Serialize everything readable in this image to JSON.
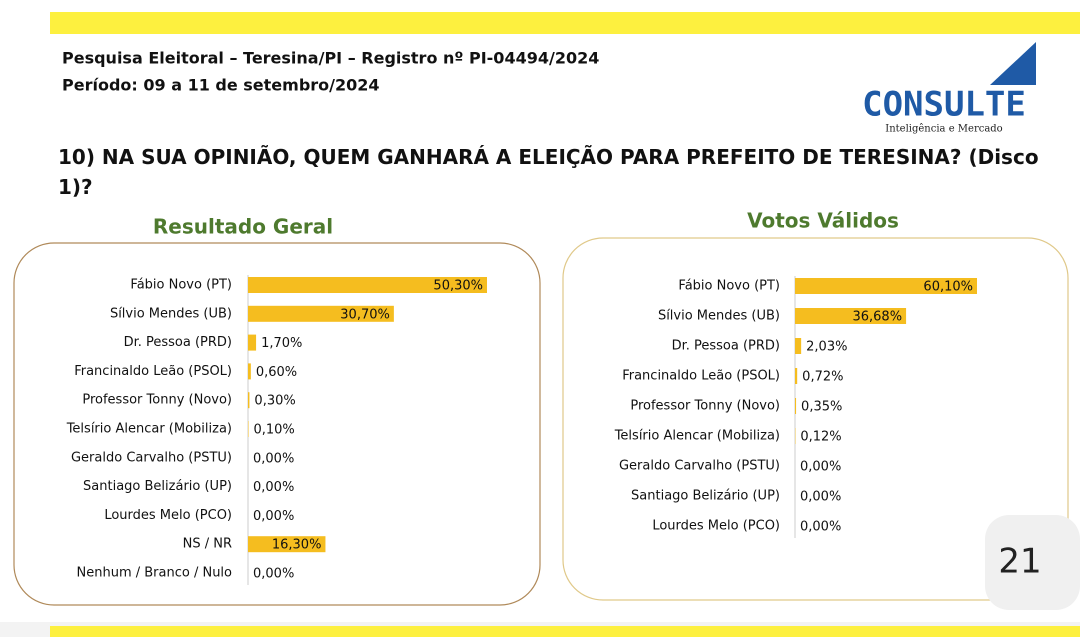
{
  "header": {
    "line1": "Pesquisa Eleitoral – Teresina/PI  – Registro nº PI-04494/2024",
    "line2": "Período: 09 a 11 de setembro/2024",
    "question": "10) NA SUA OPINIÃO, QUEM GANHARÁ A ELEIÇÃO PARA PREFEITO   DE TERESINA? (Disco 1)?"
  },
  "logo": {
    "name": "CONSULTE",
    "tagline": "Inteligência e Mercado"
  },
  "page_number": "21",
  "chart_data": [
    {
      "type": "bar",
      "orientation": "horizontal",
      "title": "Resultado Geral",
      "color": "#f5bd1f",
      "categories": [
        "Fábio Novo (PT)",
        "Sílvio Mendes (UB)",
        "Dr. Pessoa (PRD)",
        "Francinaldo Leão (PSOL)",
        "Professor Tonny (Novo)",
        "Telsírio Alencar (Mobiliza)",
        "Geraldo Carvalho (PSTU)",
        "Santiago Belizário (UP)",
        "Lourdes Melo (PCO)",
        "NS / NR",
        "Nenhum / Branco / Nulo"
      ],
      "values": [
        50.3,
        30.7,
        1.7,
        0.6,
        0.3,
        0.1,
        0,
        0,
        0,
        16.3,
        0
      ],
      "value_labels": [
        "50,30%",
        "30,70%",
        "1,70%",
        "0,60%",
        "0,30%",
        "0,10%",
        "0,00%",
        "0,00%",
        "0,00%",
        "16,30%",
        "0,00%"
      ]
    },
    {
      "type": "bar",
      "orientation": "horizontal",
      "title": "Votos Válidos",
      "color": "#f5bd1f",
      "categories": [
        "Fábio Novo (PT)",
        "Sílvio Mendes (UB)",
        "Dr. Pessoa (PRD)",
        "Francinaldo Leão (PSOL)",
        "Professor Tonny (Novo)",
        "Telsírio Alencar (Mobiliza)",
        "Geraldo Carvalho (PSTU)",
        "Santiago Belizário (UP)",
        "Lourdes Melo (PCO)"
      ],
      "values": [
        60.1,
        36.68,
        2.03,
        0.72,
        0.35,
        0.12,
        0,
        0,
        0
      ],
      "value_labels": [
        "60,10%",
        "36,68%",
        "2,03%",
        "0,72%",
        "0,35%",
        "0,12%",
        "0,00%",
        "0,00%",
        "0,00%"
      ]
    }
  ]
}
